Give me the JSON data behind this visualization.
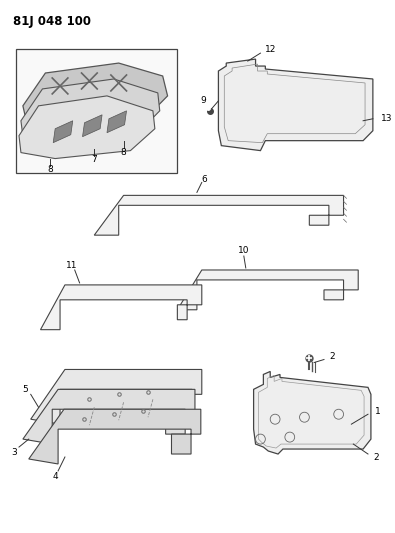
{
  "title": "81J 048 100",
  "bg": "#ffffff",
  "lc": "#333333",
  "fc_light": "#f5f5f5",
  "fc_mid": "#e8e8e8",
  "fc_dark": "#d8d8d8",
  "figsize": [
    3.95,
    5.33
  ],
  "dpi": 100
}
